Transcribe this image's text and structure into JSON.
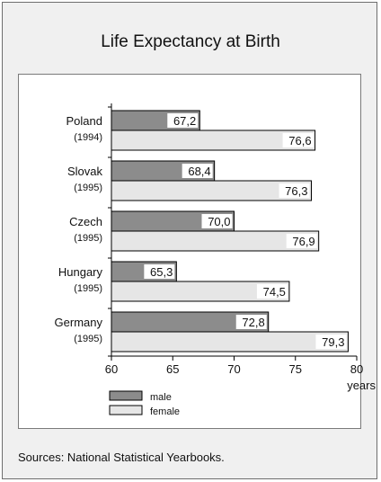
{
  "chart_data": {
    "type": "bar",
    "orientation": "horizontal",
    "title": "Life Expectancy at Birth",
    "categories": [
      {
        "name": "Poland",
        "year": "(1994)"
      },
      {
        "name": "Slovak",
        "year": "(1995)"
      },
      {
        "name": "Czech",
        "year": "(1995)"
      },
      {
        "name": "Hungary",
        "year": "(1995)"
      },
      {
        "name": "Germany",
        "year": "(1995)"
      }
    ],
    "series": [
      {
        "name": "male",
        "values": [
          67.2,
          68.4,
          70.0,
          65.3,
          72.8
        ],
        "labels": [
          "67,2",
          "68,4",
          "70,0",
          "65,3",
          "72,8"
        ],
        "color": "#8c8c8c"
      },
      {
        "name": "female",
        "values": [
          76.6,
          76.3,
          76.9,
          74.5,
          79.3
        ],
        "labels": [
          "76,6",
          "76,3",
          "76,9",
          "74,5",
          "79,3"
        ],
        "color": "#e6e6e6"
      }
    ],
    "xlim": [
      60,
      80
    ],
    "xticks": [
      60,
      65,
      70,
      75,
      80
    ],
    "xlabel": "years",
    "grid": false,
    "legend": "bottom-left"
  },
  "source_note": "Sources: National Statistical Yearbooks."
}
